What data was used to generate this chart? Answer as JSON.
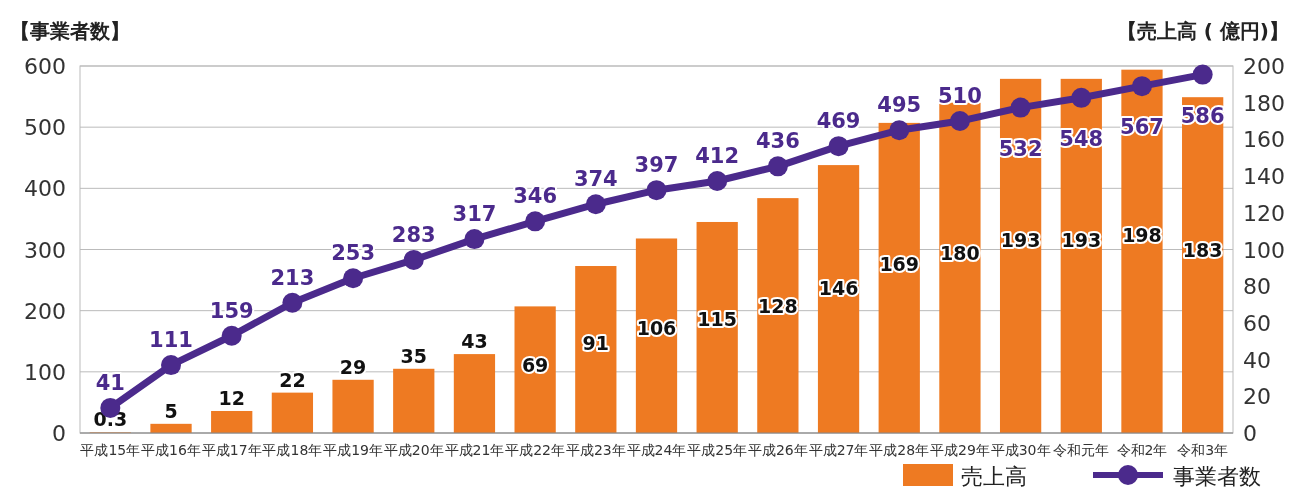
{
  "chart_data": {
    "type": "bar",
    "ylabel": "【事業者数】",
    "y2label": "【売上高 ( 億円)】",
    "categories": [
      "平成15年",
      "平成16年",
      "平成17年",
      "平成18年",
      "平成19年",
      "平成20年",
      "平成21年",
      "平成22年",
      "平成23年",
      "平成24年",
      "平成25年",
      "平成26年",
      "平成27年",
      "平成28年",
      "平成29年",
      "平成30年",
      "令和元年",
      "令和2年",
      "令和3年"
    ],
    "series": [
      {
        "name": "売上高",
        "axis": "y2",
        "color": "#ee7a22",
        "values": [
          0.3,
          5,
          12,
          22,
          29,
          35,
          43,
          69,
          91,
          106,
          115,
          128,
          146,
          169,
          180,
          193,
          193,
          198,
          183
        ]
      },
      {
        "name": "事業者数",
        "type": "line",
        "axis": "y",
        "color": "#4b2a8c",
        "marker": "circle",
        "values": [
          41,
          111,
          159,
          213,
          253,
          283,
          317,
          346,
          374,
          397,
          412,
          436,
          469,
          495,
          510,
          532,
          548,
          567,
          586
        ]
      }
    ],
    "data_labels": true,
    "ylim": [
      0,
      600
    ],
    "yticks": [
      0,
      100,
      200,
      300,
      400,
      500,
      600
    ],
    "y2lim": [
      0,
      200
    ],
    "y2ticks": [
      0,
      20,
      40,
      60,
      80,
      100,
      120,
      140,
      160,
      180,
      200
    ],
    "grid": "y",
    "legend": "bottom right"
  }
}
